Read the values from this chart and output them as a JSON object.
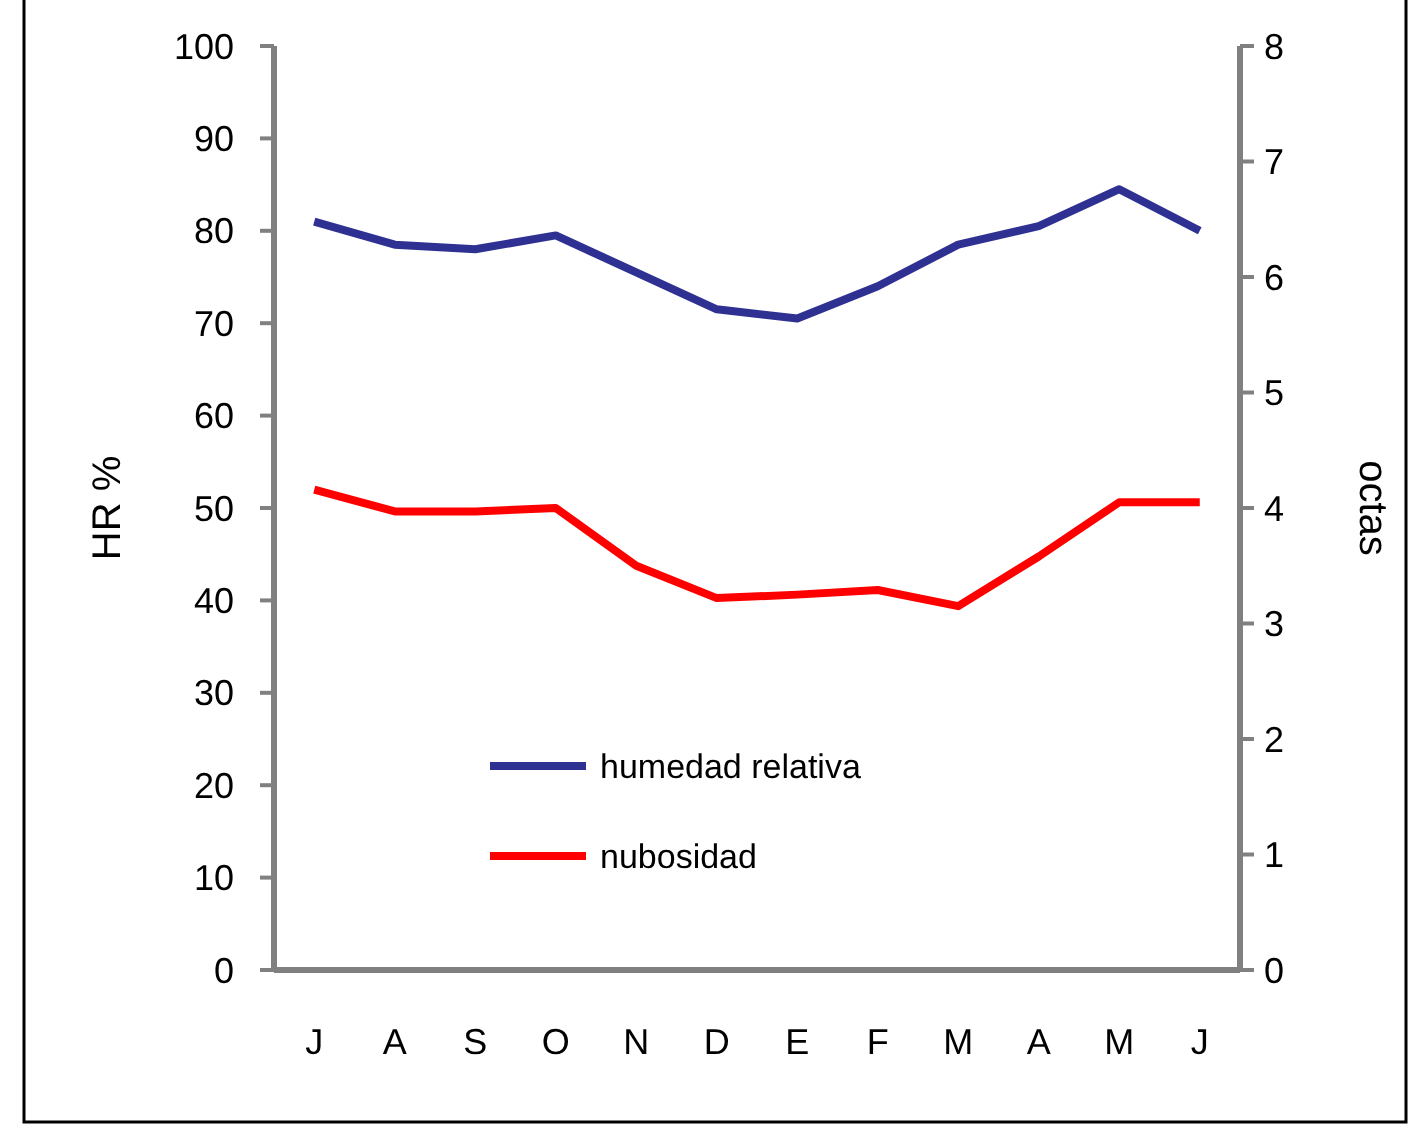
{
  "chart_data": {
    "type": "line",
    "ylabel": "HR %",
    "y2label": "octas",
    "categories": [
      "J",
      "A",
      "S",
      "O",
      "N",
      "D",
      "E",
      "F",
      "M",
      "A",
      "M",
      "J"
    ],
    "series": [
      {
        "name": "humedad relativa",
        "color": "#2e3192",
        "values": [
          81,
          78.5,
          78,
          79.5,
          75.5,
          71.5,
          70.5,
          74,
          78.5,
          80.5,
          84.5,
          80
        ]
      },
      {
        "name": "nubosidad",
        "color": "#ff0000",
        "axis": "y2",
        "values": [
          4.16,
          3.97,
          3.97,
          4.0,
          3.5,
          3.22,
          3.25,
          3.29,
          3.15,
          3.58,
          4.05,
          4.05
        ]
      }
    ],
    "ylim": [
      0,
      100
    ],
    "yticks": [
      0,
      10,
      20,
      30,
      40,
      50,
      60,
      70,
      80,
      90,
      100
    ],
    "y2lim": [
      0,
      8
    ],
    "y2ticks": [
      0,
      1,
      2,
      3,
      4,
      5,
      6,
      7,
      8
    ],
    "legend": "bottom left",
    "grid": false,
    "marker": "none",
    "line_style": "solid"
  }
}
